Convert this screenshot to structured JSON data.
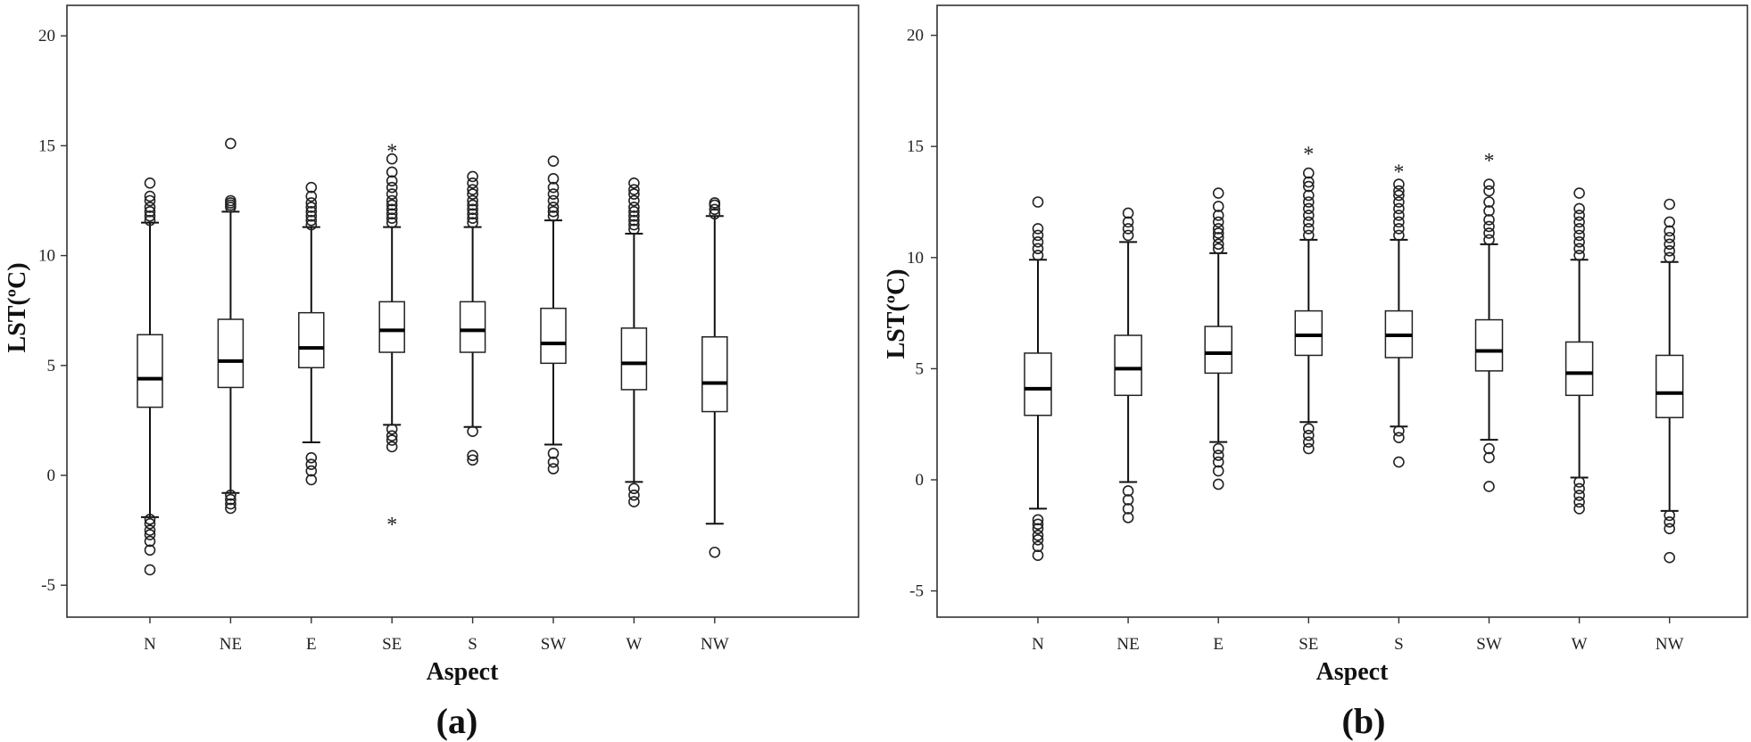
{
  "chart_data": [
    {
      "type": "box",
      "panel_label": "(a)",
      "xlabel": "Aspect",
      "ylabel": "LST(ºC)",
      "ylim": [
        -6,
        21
      ],
      "yticks": [
        "-5",
        "0",
        "5",
        "10",
        "15",
        "20"
      ],
      "categories": [
        "N",
        "NE",
        "E",
        "SE",
        "S",
        "SW",
        "W",
        "NW"
      ],
      "boxes": [
        {
          "category": "N",
          "min": -1.9,
          "q1": 3.1,
          "median": 4.4,
          "q3": 6.4,
          "max": 11.5,
          "outliers": [
            11.6,
            11.8,
            12.0,
            12.2,
            12.5,
            12.7,
            13.3,
            -2.0,
            -2.2,
            -2.5,
            -2.7,
            -3.0,
            -3.4,
            -4.3
          ],
          "extremes": []
        },
        {
          "category": "NE",
          "min": -0.8,
          "q1": 4.0,
          "median": 5.2,
          "q3": 7.1,
          "max": 12.0,
          "outliers": [
            12.2,
            12.3,
            12.4,
            12.5,
            15.1,
            -0.9,
            -1.1,
            -1.3,
            -1.5
          ],
          "extremes": []
        },
        {
          "category": "E",
          "min": 1.5,
          "q1": 4.9,
          "median": 5.8,
          "q3": 7.4,
          "max": 11.3,
          "outliers": [
            11.4,
            11.6,
            11.8,
            12.0,
            12.2,
            12.4,
            12.7,
            13.1,
            0.8,
            0.5,
            0.2,
            -0.2
          ],
          "extremes": []
        },
        {
          "category": "SE",
          "min": 2.3,
          "q1": 5.6,
          "median": 6.6,
          "q3": 7.9,
          "max": 11.3,
          "outliers": [
            11.5,
            11.7,
            11.9,
            12.1,
            12.3,
            12.5,
            12.8,
            13.1,
            13.4,
            13.8,
            14.4,
            2.1,
            1.8,
            1.6,
            1.3
          ],
          "extremes": [
            14.8,
            -2.2
          ]
        },
        {
          "category": "S",
          "min": 2.2,
          "q1": 5.6,
          "median": 6.6,
          "q3": 7.9,
          "max": 11.3,
          "outliers": [
            11.5,
            11.7,
            11.9,
            12.1,
            12.3,
            12.5,
            12.8,
            13.0,
            13.3,
            13.6,
            2.0,
            0.9,
            0.7
          ],
          "extremes": []
        },
        {
          "category": "SW",
          "min": 1.4,
          "q1": 5.1,
          "median": 6.0,
          "q3": 7.6,
          "max": 11.6,
          "outliers": [
            11.8,
            12.0,
            12.2,
            12.5,
            12.8,
            13.1,
            13.5,
            14.3,
            1.0,
            0.6,
            0.3
          ],
          "extremes": []
        },
        {
          "category": "W",
          "min": -0.3,
          "q1": 3.9,
          "median": 5.1,
          "q3": 6.7,
          "max": 11.0,
          "outliers": [
            11.2,
            11.4,
            11.6,
            11.8,
            12.0,
            12.2,
            12.5,
            12.8,
            13.0,
            13.3,
            -0.6,
            -0.9,
            -1.2
          ],
          "extremes": []
        },
        {
          "category": "NW",
          "min": -2.2,
          "q1": 2.9,
          "median": 4.2,
          "q3": 6.3,
          "max": 11.8,
          "outliers": [
            11.9,
            12.1,
            12.3,
            12.4,
            -3.5
          ],
          "extremes": []
        }
      ]
    },
    {
      "type": "box",
      "panel_label": "(b)",
      "xlabel": "Aspect",
      "ylabel": "LST(ºC)",
      "ylim": [
        -6,
        21
      ],
      "yticks": [
        "-5",
        "0",
        "5",
        "10",
        "15",
        "20"
      ],
      "categories": [
        "N",
        "NE",
        "E",
        "SE",
        "S",
        "SW",
        "W",
        "NW"
      ],
      "boxes": [
        {
          "category": "N",
          "min": -1.3,
          "q1": 2.9,
          "median": 4.1,
          "q3": 5.7,
          "max": 9.9,
          "outliers": [
            10.1,
            10.4,
            10.7,
            11.0,
            11.3,
            12.5,
            -1.8,
            -2.0,
            -2.2,
            -2.5,
            -2.7,
            -3.0,
            -3.4
          ],
          "extremes": []
        },
        {
          "category": "NE",
          "min": -0.1,
          "q1": 3.8,
          "median": 5.0,
          "q3": 6.5,
          "max": 10.7,
          "outliers": [
            11.0,
            11.3,
            11.6,
            12.0,
            -0.5,
            -0.9,
            -1.3,
            -1.7
          ],
          "extremes": []
        },
        {
          "category": "E",
          "min": 1.7,
          "q1": 4.8,
          "median": 5.7,
          "q3": 6.9,
          "max": 10.2,
          "outliers": [
            10.4,
            10.6,
            10.9,
            11.1,
            11.3,
            11.6,
            11.9,
            12.3,
            12.9,
            1.4,
            1.1,
            0.8,
            0.4,
            -0.2
          ],
          "extremes": []
        },
        {
          "category": "SE",
          "min": 2.6,
          "q1": 5.6,
          "median": 6.5,
          "q3": 7.6,
          "max": 10.8,
          "outliers": [
            11.0,
            11.3,
            11.6,
            11.9,
            12.2,
            12.5,
            12.8,
            13.2,
            13.4,
            13.8,
            2.3,
            2.0,
            1.7,
            1.4
          ],
          "extremes": [
            14.7
          ]
        },
        {
          "category": "S",
          "min": 2.4,
          "q1": 5.5,
          "median": 6.5,
          "q3": 7.6,
          "max": 10.8,
          "outliers": [
            11.0,
            11.3,
            11.6,
            11.9,
            12.2,
            12.5,
            12.8,
            13.0,
            13.3,
            2.2,
            1.9,
            0.8
          ],
          "extremes": [
            13.9
          ]
        },
        {
          "category": "SW",
          "min": 1.8,
          "q1": 4.9,
          "median": 5.8,
          "q3": 7.2,
          "max": 10.6,
          "outliers": [
            10.8,
            11.1,
            11.4,
            11.7,
            12.1,
            12.5,
            13.0,
            13.3,
            1.4,
            1.0,
            -0.3
          ],
          "extremes": [
            14.4
          ]
        },
        {
          "category": "W",
          "min": 0.1,
          "q1": 3.8,
          "median": 4.8,
          "q3": 6.2,
          "max": 9.9,
          "outliers": [
            10.1,
            10.4,
            10.7,
            11.0,
            11.3,
            11.6,
            11.9,
            12.2,
            12.9,
            -0.1,
            -0.4,
            -0.7,
            -1.0,
            -1.3
          ],
          "extremes": []
        },
        {
          "category": "NW",
          "min": -1.4,
          "q1": 2.8,
          "median": 3.9,
          "q3": 5.6,
          "max": 9.8,
          "outliers": [
            10.0,
            10.3,
            10.6,
            10.9,
            11.2,
            11.6,
            12.4,
            -1.6,
            -1.9,
            -2.2,
            -3.5
          ],
          "extremes": []
        }
      ]
    }
  ]
}
